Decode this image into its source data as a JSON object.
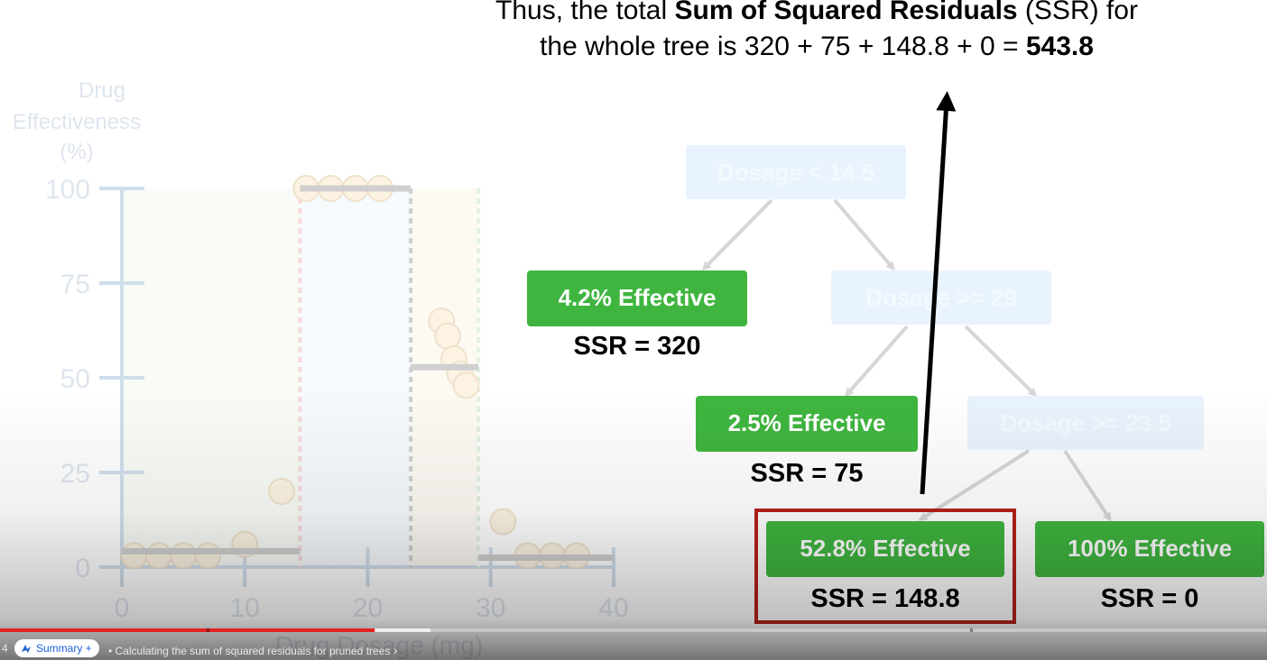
{
  "caption": {
    "line1_pre": "Thus, the total ",
    "line1_bold": "Sum of Squared Residuals",
    "line1_post": " (SSR) for",
    "line2_pre": "the whole tree is 320 + 75 + 148.8 + 0 = ",
    "line2_bold": "543.8"
  },
  "chart": {
    "ylabel_1": "Drug",
    "ylabel_2": "Effectiveness",
    "ylabel_3": "(%)",
    "xlabel": "Drug Dosage (mg)",
    "yticks": [
      "0",
      "25",
      "50",
      "75",
      "100"
    ],
    "xticks": [
      "0",
      "10",
      "20",
      "30",
      "40"
    ]
  },
  "chart_data": {
    "type": "scatter",
    "title": "",
    "xlabel": "Drug Dosage (mg)",
    "ylabel": "Drug Effectiveness (%)",
    "xlim": [
      0,
      40
    ],
    "ylim": [
      0,
      100
    ],
    "points": [
      {
        "x": 1,
        "y": 3
      },
      {
        "x": 3,
        "y": 3
      },
      {
        "x": 5,
        "y": 3
      },
      {
        "x": 7,
        "y": 3
      },
      {
        "x": 10,
        "y": 6
      },
      {
        "x": 13,
        "y": 20
      },
      {
        "x": 15,
        "y": 100
      },
      {
        "x": 17,
        "y": 100
      },
      {
        "x": 19,
        "y": 100
      },
      {
        "x": 21,
        "y": 100
      },
      {
        "x": 26,
        "y": 65
      },
      {
        "x": 26.5,
        "y": 61
      },
      {
        "x": 27,
        "y": 55
      },
      {
        "x": 27.5,
        "y": 51
      },
      {
        "x": 28,
        "y": 48
      },
      {
        "x": 31,
        "y": 12
      },
      {
        "x": 33,
        "y": 3
      },
      {
        "x": 35,
        "y": 3
      },
      {
        "x": 37,
        "y": 3
      }
    ],
    "fits": [
      {
        "x0": 0,
        "x1": 14.5,
        "y": 4.2
      },
      {
        "x0": 14.5,
        "x1": 23.5,
        "y": 100
      },
      {
        "x0": 23.5,
        "x1": 29,
        "y": 52.8
      },
      {
        "x0": 29,
        "x1": 40,
        "y": 2.5
      }
    ],
    "thresholds": [
      14.5,
      23.5,
      29
    ]
  },
  "tree": {
    "root": "Dosage < 14.5",
    "node2": "Dosage >= 29",
    "node3": "Dosage >= 23.5",
    "leaf1": "4.2% Effective",
    "leaf1_ssr": "SSR = 320",
    "leaf2": "2.5% Effective",
    "leaf2_ssr": "SSR = 75",
    "leaf3": "52.8% Effective",
    "leaf3_ssr": "SSR = 148.8",
    "leaf4": "100% Effective",
    "leaf4_ssr": "SSR = 0"
  },
  "player": {
    "time": "4",
    "summary_label": "Summary +",
    "chapter_title": "• Calculating the sum of squared residuals for pruned trees",
    "chapter_chevron": "›",
    "played_fraction": 0.296,
    "colors": {
      "played": "#e52222",
      "accent": "#1a5fd6"
    }
  },
  "colors": {
    "leaf_green": "#3fb53f",
    "highlight_red": "#b5211a",
    "point_fill": "#f7d79a"
  }
}
